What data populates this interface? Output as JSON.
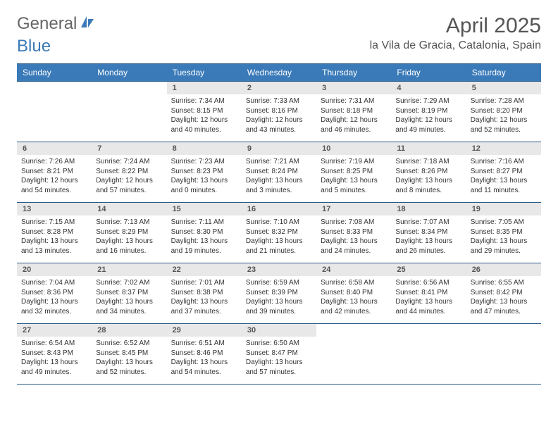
{
  "logo": {
    "part1": "General",
    "part2": "Blue"
  },
  "title": "April 2025",
  "location": "la Vila de Gracia, Catalonia, Spain",
  "colors": {
    "header_bg": "#3a7ab8",
    "header_text": "#ffffff",
    "daynum_bg": "#e8e8e8",
    "border": "#2a5a88",
    "body_text": "#333333",
    "title_text": "#555555"
  },
  "weekdays": [
    "Sunday",
    "Monday",
    "Tuesday",
    "Wednesday",
    "Thursday",
    "Friday",
    "Saturday"
  ],
  "cells": [
    [
      {
        "blank": true
      },
      {
        "blank": true
      },
      {
        "n": "1",
        "sr": "Sunrise: 7:34 AM",
        "ss": "Sunset: 8:15 PM",
        "dl": "Daylight: 12 hours and 40 minutes."
      },
      {
        "n": "2",
        "sr": "Sunrise: 7:33 AM",
        "ss": "Sunset: 8:16 PM",
        "dl": "Daylight: 12 hours and 43 minutes."
      },
      {
        "n": "3",
        "sr": "Sunrise: 7:31 AM",
        "ss": "Sunset: 8:18 PM",
        "dl": "Daylight: 12 hours and 46 minutes."
      },
      {
        "n": "4",
        "sr": "Sunrise: 7:29 AM",
        "ss": "Sunset: 8:19 PM",
        "dl": "Daylight: 12 hours and 49 minutes."
      },
      {
        "n": "5",
        "sr": "Sunrise: 7:28 AM",
        "ss": "Sunset: 8:20 PM",
        "dl": "Daylight: 12 hours and 52 minutes."
      }
    ],
    [
      {
        "n": "6",
        "sr": "Sunrise: 7:26 AM",
        "ss": "Sunset: 8:21 PM",
        "dl": "Daylight: 12 hours and 54 minutes."
      },
      {
        "n": "7",
        "sr": "Sunrise: 7:24 AM",
        "ss": "Sunset: 8:22 PM",
        "dl": "Daylight: 12 hours and 57 minutes."
      },
      {
        "n": "8",
        "sr": "Sunrise: 7:23 AM",
        "ss": "Sunset: 8:23 PM",
        "dl": "Daylight: 13 hours and 0 minutes."
      },
      {
        "n": "9",
        "sr": "Sunrise: 7:21 AM",
        "ss": "Sunset: 8:24 PM",
        "dl": "Daylight: 13 hours and 3 minutes."
      },
      {
        "n": "10",
        "sr": "Sunrise: 7:19 AM",
        "ss": "Sunset: 8:25 PM",
        "dl": "Daylight: 13 hours and 5 minutes."
      },
      {
        "n": "11",
        "sr": "Sunrise: 7:18 AM",
        "ss": "Sunset: 8:26 PM",
        "dl": "Daylight: 13 hours and 8 minutes."
      },
      {
        "n": "12",
        "sr": "Sunrise: 7:16 AM",
        "ss": "Sunset: 8:27 PM",
        "dl": "Daylight: 13 hours and 11 minutes."
      }
    ],
    [
      {
        "n": "13",
        "sr": "Sunrise: 7:15 AM",
        "ss": "Sunset: 8:28 PM",
        "dl": "Daylight: 13 hours and 13 minutes."
      },
      {
        "n": "14",
        "sr": "Sunrise: 7:13 AM",
        "ss": "Sunset: 8:29 PM",
        "dl": "Daylight: 13 hours and 16 minutes."
      },
      {
        "n": "15",
        "sr": "Sunrise: 7:11 AM",
        "ss": "Sunset: 8:30 PM",
        "dl": "Daylight: 13 hours and 19 minutes."
      },
      {
        "n": "16",
        "sr": "Sunrise: 7:10 AM",
        "ss": "Sunset: 8:32 PM",
        "dl": "Daylight: 13 hours and 21 minutes."
      },
      {
        "n": "17",
        "sr": "Sunrise: 7:08 AM",
        "ss": "Sunset: 8:33 PM",
        "dl": "Daylight: 13 hours and 24 minutes."
      },
      {
        "n": "18",
        "sr": "Sunrise: 7:07 AM",
        "ss": "Sunset: 8:34 PM",
        "dl": "Daylight: 13 hours and 26 minutes."
      },
      {
        "n": "19",
        "sr": "Sunrise: 7:05 AM",
        "ss": "Sunset: 8:35 PM",
        "dl": "Daylight: 13 hours and 29 minutes."
      }
    ],
    [
      {
        "n": "20",
        "sr": "Sunrise: 7:04 AM",
        "ss": "Sunset: 8:36 PM",
        "dl": "Daylight: 13 hours and 32 minutes."
      },
      {
        "n": "21",
        "sr": "Sunrise: 7:02 AM",
        "ss": "Sunset: 8:37 PM",
        "dl": "Daylight: 13 hours and 34 minutes."
      },
      {
        "n": "22",
        "sr": "Sunrise: 7:01 AM",
        "ss": "Sunset: 8:38 PM",
        "dl": "Daylight: 13 hours and 37 minutes."
      },
      {
        "n": "23",
        "sr": "Sunrise: 6:59 AM",
        "ss": "Sunset: 8:39 PM",
        "dl": "Daylight: 13 hours and 39 minutes."
      },
      {
        "n": "24",
        "sr": "Sunrise: 6:58 AM",
        "ss": "Sunset: 8:40 PM",
        "dl": "Daylight: 13 hours and 42 minutes."
      },
      {
        "n": "25",
        "sr": "Sunrise: 6:56 AM",
        "ss": "Sunset: 8:41 PM",
        "dl": "Daylight: 13 hours and 44 minutes."
      },
      {
        "n": "26",
        "sr": "Sunrise: 6:55 AM",
        "ss": "Sunset: 8:42 PM",
        "dl": "Daylight: 13 hours and 47 minutes."
      }
    ],
    [
      {
        "n": "27",
        "sr": "Sunrise: 6:54 AM",
        "ss": "Sunset: 8:43 PM",
        "dl": "Daylight: 13 hours and 49 minutes."
      },
      {
        "n": "28",
        "sr": "Sunrise: 6:52 AM",
        "ss": "Sunset: 8:45 PM",
        "dl": "Daylight: 13 hours and 52 minutes."
      },
      {
        "n": "29",
        "sr": "Sunrise: 6:51 AM",
        "ss": "Sunset: 8:46 PM",
        "dl": "Daylight: 13 hours and 54 minutes."
      },
      {
        "n": "30",
        "sr": "Sunrise: 6:50 AM",
        "ss": "Sunset: 8:47 PM",
        "dl": "Daylight: 13 hours and 57 minutes."
      },
      {
        "blank": true
      },
      {
        "blank": true
      },
      {
        "blank": true
      }
    ]
  ]
}
